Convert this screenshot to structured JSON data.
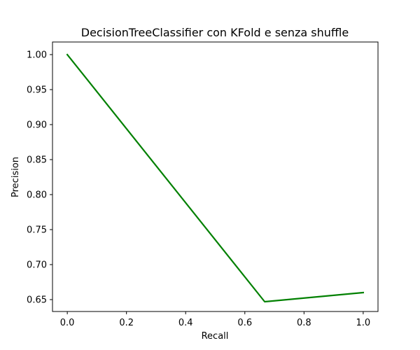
{
  "chart_data": {
    "type": "line",
    "title": "DecisionTreeClassifier  con KFold e senza shuffle",
    "xlabel": "Recall",
    "ylabel": "Precision",
    "xlim": [
      -0.05,
      1.05
    ],
    "ylim": [
      0.633,
      1.018
    ],
    "xticks": [
      0.0,
      0.2,
      0.4,
      0.6,
      0.8,
      1.0
    ],
    "xtick_labels": [
      "0.0",
      "0.2",
      "0.4",
      "0.6",
      "0.8",
      "1.0"
    ],
    "yticks": [
      0.65,
      0.7,
      0.75,
      0.8,
      0.85,
      0.9,
      0.95,
      1.0
    ],
    "ytick_labels": [
      "0.65",
      "0.70",
      "0.75",
      "0.80",
      "0.85",
      "0.90",
      "0.95",
      "1.00"
    ],
    "grid": false,
    "series": [
      {
        "color": "#008000",
        "x": [
          0.0,
          0.667,
          1.0
        ],
        "y": [
          1.0,
          0.647,
          0.66
        ]
      }
    ]
  }
}
